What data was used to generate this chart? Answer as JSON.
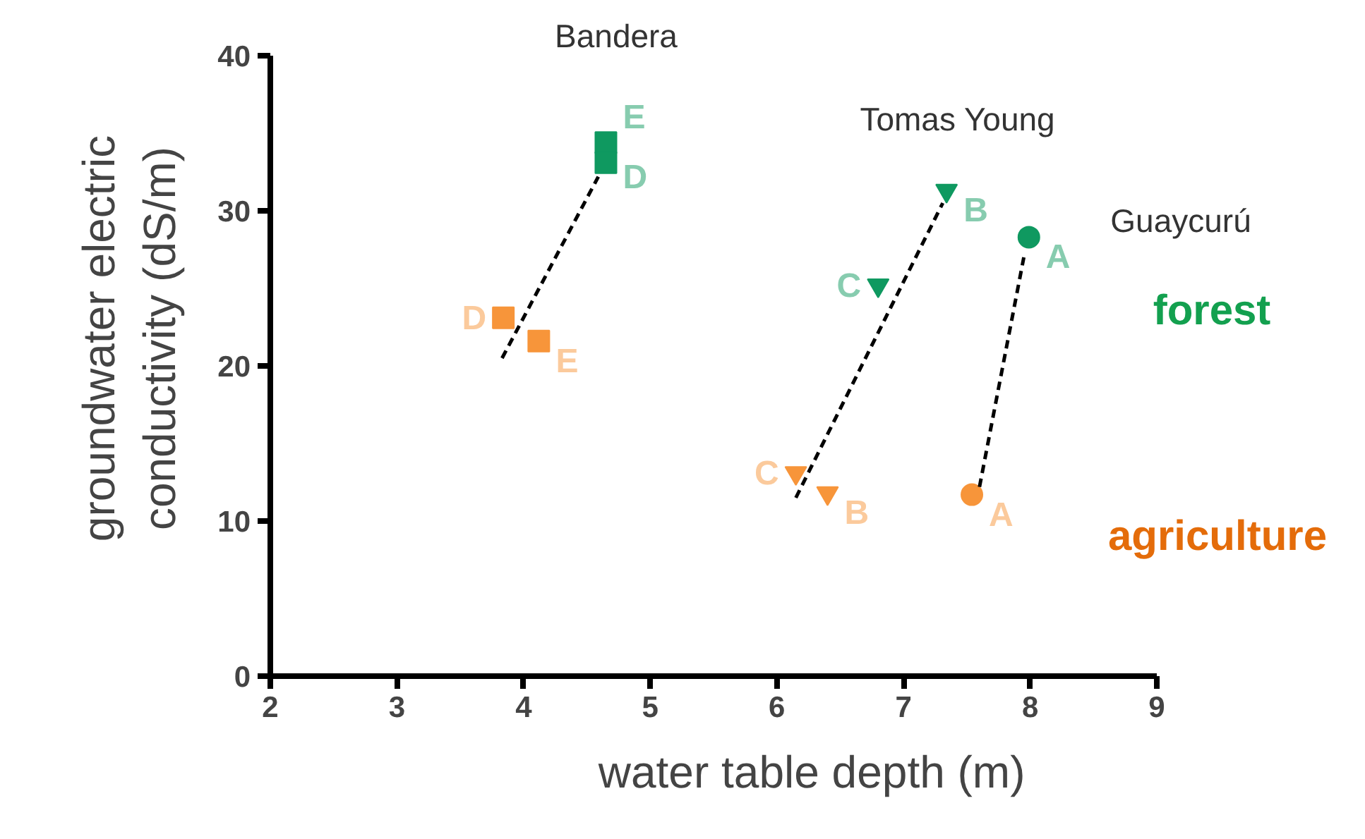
{
  "chart_data": {
    "type": "scatter",
    "xlabel": "water table depth  (m)",
    "ylabel": "groundwater electric\nconductivity (dS/m)",
    "xlim": [
      2,
      9
    ],
    "ylim": [
      0,
      40
    ],
    "xticks": [
      2,
      3,
      4,
      5,
      6,
      7,
      8,
      9
    ],
    "yticks": [
      0,
      10,
      20,
      30,
      40
    ],
    "grid": false,
    "series": [
      {
        "marker": "square",
        "color": "#0f9960",
        "x": [
          4.65,
          4.65
        ],
        "values": [
          34.4,
          33.1
        ],
        "value_labels": [
          "E",
          "D"
        ]
      },
      {
        "marker": "square",
        "color": "#f7953a",
        "x": [
          3.84,
          4.12
        ],
        "values": [
          23.1,
          21.6
        ],
        "value_labels": [
          "D",
          "E"
        ]
      },
      {
        "marker": "triangle_down",
        "color": "#0f9960",
        "x": [
          7.34,
          6.8
        ],
        "values": [
          31.3,
          25.2
        ],
        "value_labels": [
          "B",
          "C"
        ]
      },
      {
        "marker": "triangle_down",
        "color": "#f7953a",
        "x": [
          6.15,
          6.4
        ],
        "values": [
          13.1,
          11.8
        ],
        "value_labels": [
          "C",
          "B"
        ]
      },
      {
        "marker": "circle",
        "color": "#0f9960",
        "x": [
          7.99
        ],
        "values": [
          28.3
        ],
        "value_labels": [
          "A"
        ]
      },
      {
        "marker": "circle",
        "color": "#f7953a",
        "x": [
          7.54
        ],
        "values": [
          11.7
        ],
        "value_labels": [
          "A"
        ]
      },
      {
        "type": "line",
        "line_style": "dashed",
        "marker": "none",
        "color": "#000000",
        "x": [
          3.83,
          4.59
        ],
        "values": [
          20.5,
          32.2
        ]
      },
      {
        "type": "line",
        "line_style": "dashed",
        "marker": "none",
        "color": "#000000",
        "x": [
          6.15,
          7.31
        ],
        "values": [
          11.5,
          30.5
        ]
      },
      {
        "type": "line",
        "line_style": "dashed",
        "marker": "none",
        "color": "#000000",
        "x": [
          7.6,
          7.95
        ],
        "values": [
          12.2,
          27.0
        ]
      }
    ],
    "annotations": [
      "Bandera",
      "Tomas Young",
      "Guaycurú",
      "forest",
      "agriculture"
    ]
  }
}
